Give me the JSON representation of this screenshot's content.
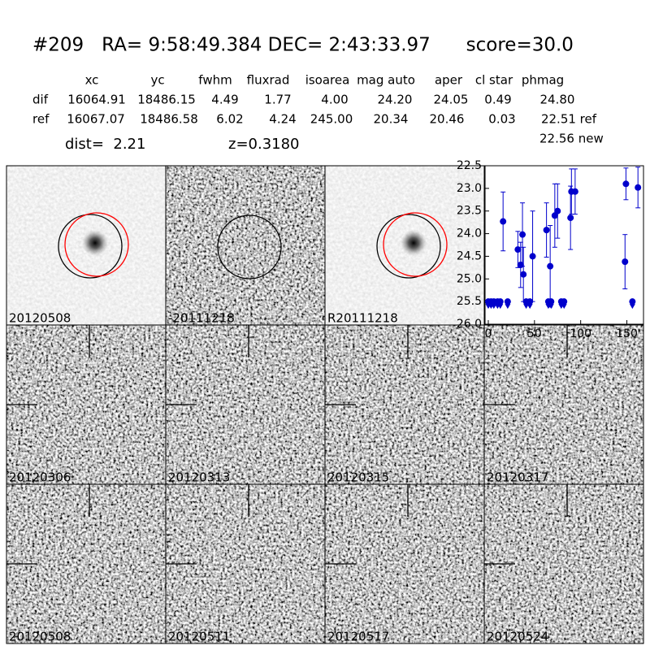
{
  "header": {
    "title": "#209   RA= 9:58:49.384 DEC= 2:43:33.97      score=30.0"
  },
  "table": {
    "columns": [
      "xc",
      "yc",
      "fwhm",
      "fluxrad",
      "isoarea",
      "mag auto",
      "aper",
      "cl star",
      "phmag"
    ],
    "rows": [
      [
        "dif",
        "16064.91",
        "18486.15",
        "4.49",
        "1.77",
        "4.00",
        "24.20",
        "24.05",
        "0.49",
        "24.80"
      ],
      [
        "ref",
        "16067.07",
        "18486.58",
        "6.02",
        "4.24",
        "245.00",
        "20.34",
        "20.46",
        "0.03",
        "22.51 ref"
      ]
    ],
    "extra": "22.56 new"
  },
  "dist": "dist=  2.21",
  "z": "z=0.3180",
  "panels": [
    {
      "label": "20120508"
    },
    {
      "label": "-20111218"
    },
    {
      "label": "R20111218"
    },
    {
      "label": "20120306"
    },
    {
      "label": "20120313"
    },
    {
      "label": "20120315"
    },
    {
      "label": "20120317"
    },
    {
      "label": "20120508",
      "color": "#ff0000"
    },
    {
      "label": "20120511"
    },
    {
      "label": "20120517"
    },
    {
      "label": "20120524"
    }
  ],
  "chart_data": {
    "type": "scatter",
    "color": "#0000cc",
    "x": [
      0,
      3,
      6,
      10,
      13,
      16,
      21,
      32,
      35,
      37,
      38,
      41,
      45,
      48,
      63,
      65,
      67,
      68,
      72,
      75,
      79,
      82,
      89,
      90,
      94,
      148,
      149,
      156,
      162
    ],
    "values": [
      25.5,
      25.5,
      25.5,
      25.5,
      25.5,
      23.73,
      25.5,
      24.35,
      24.69,
      24.02,
      24.9,
      25.5,
      25.5,
      24.5,
      23.92,
      25.5,
      24.72,
      25.5,
      23.6,
      23.5,
      25.5,
      25.5,
      23.65,
      23.07,
      23.07,
      24.62,
      22.9,
      25.5,
      22.98
    ],
    "errors": [
      null,
      null,
      null,
      null,
      null,
      0.65,
      null,
      0.4,
      0.5,
      0.7,
      0.6,
      null,
      null,
      1.0,
      0.6,
      null,
      0.9,
      null,
      0.7,
      0.6,
      null,
      null,
      0.7,
      0.5,
      0.5,
      0.6,
      0.35,
      null,
      0.45
    ],
    "xlim": [
      -3.5,
      168
    ],
    "ylim": [
      26.0,
      22.5
    ],
    "inverted_y": true,
    "xticks": [
      0,
      50,
      100,
      150
    ],
    "yticks": [
      22.5,
      {
        "value": 23,
        "label": "23.0"
      },
      23.5,
      {
        "value": 24,
        "label": "24.0"
      },
      24.5,
      {
        "value": 25,
        "label": "25.0"
      },
      25.5,
      {
        "value": 26,
        "label": "26.0"
      }
    ]
  }
}
